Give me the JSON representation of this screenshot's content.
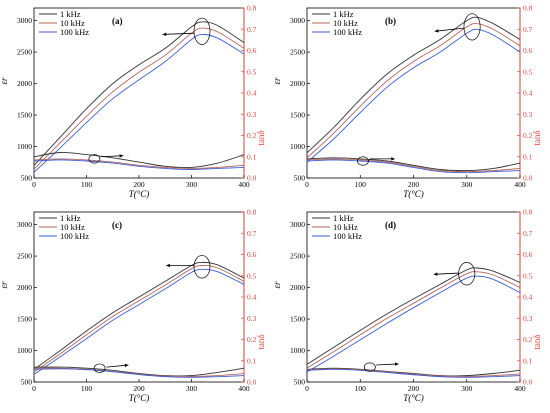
{
  "chart_data": [
    {
      "type": "line",
      "panel_label": "(a)",
      "xlabel": "T(°C)",
      "ylabel": "εr",
      "y2label": "tanδ",
      "xlim": [
        0,
        400
      ],
      "ylim": [
        500,
        3200
      ],
      "y2lim": [
        0,
        0.8
      ],
      "xticks": [
        "0",
        "100",
        "200",
        "300",
        "400"
      ],
      "yticks": [
        "500",
        "1000",
        "1500",
        "2000",
        "2500",
        "3000"
      ],
      "y2ticks": [
        "0.0",
        "0.1",
        "0.2",
        "0.3",
        "0.4",
        "0.5",
        "0.6",
        "0.7",
        "0.8"
      ],
      "legend": [
        "1 kHz",
        "10 kHz",
        "100 kHz"
      ],
      "legend_position": "top-left",
      "series": [
        {
          "name": "1 kHz",
          "axis": "left",
          "x": [
            0,
            50,
            100,
            150,
            200,
            250,
            300,
            320,
            350,
            400
          ],
          "values": [
            700,
            1150,
            1600,
            2000,
            2300,
            2560,
            2900,
            2980,
            2920,
            2650
          ]
        },
        {
          "name": "10 kHz",
          "axis": "left",
          "x": [
            0,
            50,
            100,
            150,
            200,
            250,
            300,
            320,
            350,
            400
          ],
          "values": [
            640,
            1060,
            1480,
            1870,
            2180,
            2450,
            2800,
            2880,
            2820,
            2560
          ]
        },
        {
          "name": "100 kHz",
          "axis": "left",
          "x": [
            0,
            50,
            100,
            150,
            200,
            250,
            300,
            320,
            350,
            400
          ],
          "values": [
            590,
            980,
            1380,
            1760,
            2060,
            2350,
            2700,
            2780,
            2720,
            2470
          ]
        },
        {
          "name": "1 kHz",
          "axis": "right",
          "x": [
            0,
            50,
            100,
            150,
            200,
            250,
            300,
            350,
            400
          ],
          "values": [
            0.1,
            0.12,
            0.11,
            0.095,
            0.075,
            0.055,
            0.05,
            0.07,
            0.11
          ]
        },
        {
          "name": "10 kHz",
          "axis": "right",
          "x": [
            0,
            50,
            100,
            150,
            200,
            250,
            300,
            350,
            400
          ],
          "values": [
            0.085,
            0.09,
            0.085,
            0.075,
            0.06,
            0.05,
            0.045,
            0.05,
            0.06
          ]
        },
        {
          "name": "100 kHz",
          "axis": "right",
          "x": [
            0,
            50,
            100,
            150,
            200,
            250,
            300,
            350,
            400
          ],
          "values": [
            0.08,
            0.085,
            0.08,
            0.07,
            0.055,
            0.045,
            0.04,
            0.045,
            0.05
          ]
        }
      ],
      "ellipses": [
        {
          "x": 320,
          "y": 2830,
          "rx": 16,
          "ry": 420
        },
        {
          "x": 115,
          "y": 0.09,
          "rx": 11,
          "ry": 0.04
        }
      ],
      "arrows": [
        {
          "from": [
            305,
            2800
          ],
          "to": [
            245,
            2780
          ]
        },
        {
          "from": [
            128,
            0.1
          ],
          "to": [
            170,
            0.105
          ]
        }
      ]
    },
    {
      "type": "line",
      "panel_label": "(b)",
      "xlabel": "T(°C)",
      "ylabel": "εr",
      "y2label": "tanδ",
      "xlim": [
        0,
        400
      ],
      "ylim": [
        500,
        3200
      ],
      "y2lim": [
        0,
        0.8
      ],
      "xticks": [
        "0",
        "100",
        "200",
        "300",
        "400"
      ],
      "yticks": [
        "500",
        "1000",
        "1500",
        "2000",
        "2500",
        "3000"
      ],
      "y2ticks": [
        "0.0",
        "0.1",
        "0.2",
        "0.3",
        "0.4",
        "0.5",
        "0.6",
        "0.7",
        "0.8"
      ],
      "legend": [
        "1 kHz",
        "10 kHz",
        "100 kHz"
      ],
      "legend_position": "top-left",
      "series": [
        {
          "name": "1 kHz",
          "axis": "left",
          "x": [
            0,
            50,
            100,
            150,
            200,
            250,
            300,
            320,
            350,
            400
          ],
          "values": [
            900,
            1300,
            1750,
            2150,
            2450,
            2700,
            3000,
            3050,
            2950,
            2700
          ]
        },
        {
          "name": "10 kHz",
          "axis": "left",
          "x": [
            0,
            50,
            100,
            150,
            200,
            250,
            300,
            320,
            350,
            400
          ],
          "values": [
            820,
            1210,
            1640,
            2040,
            2350,
            2600,
            2900,
            2950,
            2860,
            2600
          ]
        },
        {
          "name": "100 kHz",
          "axis": "left",
          "x": [
            0,
            50,
            100,
            150,
            200,
            250,
            300,
            320,
            350,
            400
          ],
          "values": [
            750,
            1120,
            1540,
            1940,
            2250,
            2500,
            2800,
            2860,
            2770,
            2500
          ]
        },
        {
          "name": "1 kHz",
          "axis": "right",
          "x": [
            0,
            50,
            100,
            150,
            200,
            250,
            300,
            350,
            400
          ],
          "values": [
            0.09,
            0.095,
            0.09,
            0.08,
            0.06,
            0.04,
            0.035,
            0.045,
            0.07
          ]
        },
        {
          "name": "10 kHz",
          "axis": "right",
          "x": [
            0,
            50,
            100,
            150,
            200,
            250,
            300,
            350,
            400
          ],
          "values": [
            0.085,
            0.09,
            0.085,
            0.075,
            0.055,
            0.035,
            0.03,
            0.035,
            0.045
          ]
        },
        {
          "name": "100 kHz",
          "axis": "right",
          "x": [
            0,
            50,
            100,
            150,
            200,
            250,
            300,
            350,
            400
          ],
          "values": [
            0.08,
            0.085,
            0.08,
            0.07,
            0.05,
            0.03,
            0.025,
            0.03,
            0.035
          ]
        }
      ],
      "ellipses": [
        {
          "x": 310,
          "y": 2900,
          "rx": 16,
          "ry": 420
        },
        {
          "x": 105,
          "y": 0.08,
          "rx": 11,
          "ry": 0.04
        }
      ],
      "arrows": [
        {
          "from": [
            295,
            2880
          ],
          "to": [
            240,
            2830
          ]
        },
        {
          "from": [
            118,
            0.09
          ],
          "to": [
            165,
            0.09
          ]
        }
      ]
    },
    {
      "type": "line",
      "panel_label": "(c)",
      "xlabel": "T(°C)",
      "ylabel": "εr",
      "y2label": "tanδ",
      "xlim": [
        0,
        400
      ],
      "ylim": [
        500,
        3200
      ],
      "y2lim": [
        0,
        0.8
      ],
      "xticks": [
        "0",
        "100",
        "200",
        "300",
        "400"
      ],
      "yticks": [
        "500",
        "1000",
        "1500",
        "2000",
        "2500",
        "3000"
      ],
      "y2ticks": [
        "0.0",
        "0.1",
        "0.2",
        "0.3",
        "0.4",
        "0.5",
        "0.6",
        "0.7",
        "0.8"
      ],
      "legend": [
        "1 kHz",
        "10 kHz",
        "100 kHz"
      ],
      "legend_position": "top-left",
      "series": [
        {
          "name": "1 kHz",
          "axis": "left",
          "x": [
            0,
            50,
            100,
            150,
            200,
            250,
            300,
            320,
            350,
            400
          ],
          "values": [
            700,
            1000,
            1310,
            1600,
            1850,
            2100,
            2350,
            2400,
            2360,
            2150
          ]
        },
        {
          "name": "10 kHz",
          "axis": "left",
          "x": [
            0,
            50,
            100,
            150,
            200,
            250,
            300,
            320,
            350,
            400
          ],
          "values": [
            660,
            950,
            1250,
            1540,
            1790,
            2040,
            2300,
            2350,
            2310,
            2100
          ]
        },
        {
          "name": "100 kHz",
          "axis": "left",
          "x": [
            0,
            50,
            100,
            150,
            200,
            250,
            300,
            320,
            350,
            400
          ],
          "values": [
            620,
            900,
            1190,
            1480,
            1730,
            1980,
            2240,
            2290,
            2250,
            2050
          ]
        },
        {
          "name": "1 kHz",
          "axis": "right",
          "x": [
            0,
            50,
            100,
            150,
            200,
            250,
            300,
            350,
            400
          ],
          "values": [
            0.07,
            0.07,
            0.065,
            0.055,
            0.04,
            0.03,
            0.03,
            0.045,
            0.065
          ]
        },
        {
          "name": "10 kHz",
          "axis": "right",
          "x": [
            0,
            50,
            100,
            150,
            200,
            250,
            300,
            350,
            400
          ],
          "values": [
            0.065,
            0.065,
            0.06,
            0.05,
            0.037,
            0.028,
            0.026,
            0.03,
            0.04
          ]
        },
        {
          "name": "100 kHz",
          "axis": "right",
          "x": [
            0,
            50,
            100,
            150,
            200,
            250,
            300,
            350,
            400
          ],
          "values": [
            0.06,
            0.062,
            0.058,
            0.048,
            0.035,
            0.025,
            0.022,
            0.025,
            0.03
          ]
        }
      ],
      "ellipses": [
        {
          "x": 320,
          "y": 2330,
          "rx": 16,
          "ry": 360
        },
        {
          "x": 125,
          "y": 0.065,
          "rx": 11,
          "ry": 0.04
        }
      ],
      "arrows": [
        {
          "from": [
            305,
            2350
          ],
          "to": [
            252,
            2350
          ]
        },
        {
          "from": [
            138,
            0.07
          ],
          "to": [
            180,
            0.08
          ]
        }
      ]
    },
    {
      "type": "line",
      "panel_label": "(d)",
      "xlabel": "T(°C)",
      "ylabel": "εr",
      "y2label": "tanδ",
      "xlim": [
        0,
        400
      ],
      "ylim": [
        500,
        3200
      ],
      "y2lim": [
        0,
        0.8
      ],
      "xticks": [
        "0",
        "100",
        "200",
        "300",
        "400"
      ],
      "yticks": [
        "500",
        "1000",
        "1500",
        "2000",
        "2500",
        "3000"
      ],
      "y2ticks": [
        "0.0",
        "0.1",
        "0.2",
        "0.3",
        "0.4",
        "0.5",
        "0.6",
        "0.7",
        "0.8"
      ],
      "legend": [
        "1 kHz",
        "10 kHz",
        "100 kHz"
      ],
      "legend_position": "top-left",
      "series": [
        {
          "name": "1 kHz",
          "axis": "left",
          "x": [
            0,
            50,
            100,
            150,
            200,
            250,
            300,
            320,
            350,
            400
          ],
          "values": [
            780,
            1050,
            1320,
            1580,
            1820,
            2050,
            2280,
            2310,
            2260,
            2080
          ]
        },
        {
          "name": "10 kHz",
          "axis": "left",
          "x": [
            0,
            50,
            100,
            150,
            200,
            250,
            300,
            320,
            350,
            400
          ],
          "values": [
            720,
            980,
            1250,
            1510,
            1750,
            1990,
            2220,
            2250,
            2200,
            2000
          ]
        },
        {
          "name": "100 kHz",
          "axis": "left",
          "x": [
            0,
            50,
            100,
            150,
            200,
            250,
            300,
            320,
            350,
            400
          ],
          "values": [
            660,
            910,
            1170,
            1430,
            1680,
            1920,
            2150,
            2180,
            2130,
            1920
          ]
        },
        {
          "name": "1 kHz",
          "axis": "right",
          "x": [
            0,
            50,
            100,
            150,
            200,
            250,
            300,
            350,
            400
          ],
          "values": [
            0.06,
            0.065,
            0.06,
            0.05,
            0.04,
            0.03,
            0.03,
            0.04,
            0.055
          ]
        },
        {
          "name": "10 kHz",
          "axis": "right",
          "x": [
            0,
            50,
            100,
            150,
            200,
            250,
            300,
            350,
            400
          ],
          "values": [
            0.058,
            0.062,
            0.058,
            0.048,
            0.037,
            0.028,
            0.026,
            0.03,
            0.038
          ]
        },
        {
          "name": "100 kHz",
          "axis": "right",
          "x": [
            0,
            50,
            100,
            150,
            200,
            250,
            300,
            350,
            400
          ],
          "values": [
            0.055,
            0.06,
            0.055,
            0.045,
            0.034,
            0.025,
            0.022,
            0.025,
            0.03
          ]
        }
      ],
      "ellipses": [
        {
          "x": 300,
          "y": 2220,
          "rx": 16,
          "ry": 360
        },
        {
          "x": 118,
          "y": 0.07,
          "rx": 11,
          "ry": 0.04
        }
      ],
      "arrows": [
        {
          "from": [
            285,
            2230
          ],
          "to": [
            238,
            2210
          ]
        },
        {
          "from": [
            130,
            0.08
          ],
          "to": [
            172,
            0.085
          ]
        }
      ]
    }
  ],
  "colors": {
    "series": [
      "#333333",
      "#b5655a",
      "#3c5fd6"
    ],
    "right_axis": "#e0463c",
    "axis": "#000000"
  }
}
